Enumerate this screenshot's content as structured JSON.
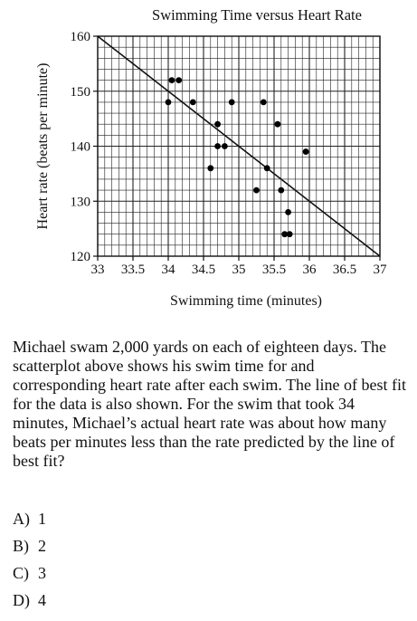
{
  "chart_data": {
    "type": "scatter",
    "title": "Swimming Time versus Heart Rate",
    "xlabel": "Swimming time (minutes)",
    "ylabel": "Heart rate (beats per minute)",
    "xlim": [
      33,
      37
    ],
    "ylim": [
      120,
      160
    ],
    "x_ticks": [
      "33",
      "33.5",
      "34",
      "34.5",
      "35",
      "35.5",
      "36",
      "36.5",
      "37"
    ],
    "y_ticks": [
      "120",
      "130",
      "140",
      "150",
      "160"
    ],
    "grid": true,
    "points": [
      {
        "x": 34.0,
        "y": 148
      },
      {
        "x": 34.05,
        "y": 152
      },
      {
        "x": 34.15,
        "y": 152
      },
      {
        "x": 34.35,
        "y": 148
      },
      {
        "x": 34.6,
        "y": 136
      },
      {
        "x": 34.7,
        "y": 144
      },
      {
        "x": 34.7,
        "y": 140
      },
      {
        "x": 34.8,
        "y": 140
      },
      {
        "x": 34.9,
        "y": 148
      },
      {
        "x": 35.25,
        "y": 132
      },
      {
        "x": 35.35,
        "y": 148
      },
      {
        "x": 35.4,
        "y": 136
      },
      {
        "x": 35.55,
        "y": 144
      },
      {
        "x": 35.6,
        "y": 132
      },
      {
        "x": 35.65,
        "y": 124
      },
      {
        "x": 35.7,
        "y": 128
      },
      {
        "x": 35.72,
        "y": 124
      },
      {
        "x": 35.95,
        "y": 139
      }
    ],
    "best_fit_line": {
      "x1": 33,
      "y1": 160,
      "x2": 37,
      "y2": 120
    }
  },
  "question": {
    "text": "Michael swam 2,000 yards on each of eighteen days. The scatterplot above shows his swim time for and corresponding heart rate after each swim. The line of best fit for the data is also shown. For the swim that took 34 minutes, Michael’s actual heart rate was about how many beats per minutes less than the rate predicted by the line of best fit?"
  },
  "choices": [
    {
      "letter": "A)",
      "value": "1"
    },
    {
      "letter": "B)",
      "value": "2"
    },
    {
      "letter": "C)",
      "value": "3"
    },
    {
      "letter": "D)",
      "value": "4"
    }
  ]
}
